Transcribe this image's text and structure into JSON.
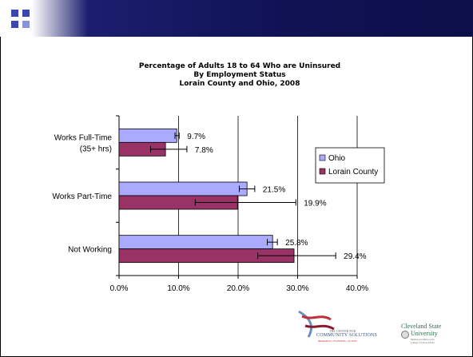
{
  "colors": {
    "ohio": "#aaaaff",
    "lorain": "#993366",
    "header_dark": "#101254",
    "accent_square": "#3b46b0"
  },
  "chart_data": {
    "type": "bar",
    "orientation": "horizontal",
    "title_lines": [
      "Percentage of Adults 18 to 64 Who are Uninsured",
      "By Employment Status",
      "Lorain County and Ohio, 2008"
    ],
    "categories": [
      "Works Full-Time\n(35+ hrs)",
      "Works Part-Time",
      "Not Working"
    ],
    "series": [
      {
        "name": "Ohio",
        "values": [
          9.7,
          21.5,
          25.8
        ],
        "labels": [
          "9.7%",
          "21.5%",
          "25.8%"
        ],
        "error_low": [
          9.4,
          20.2,
          24.9
        ],
        "error_high": [
          10.1,
          22.8,
          26.6
        ]
      },
      {
        "name": "Lorain County",
        "values": [
          7.8,
          19.9,
          29.4
        ],
        "labels": [
          "7.8%",
          "19.9%",
          "29.4%"
        ],
        "error_low": [
          5.3,
          12.8,
          23.3
        ],
        "error_high": [
          11.4,
          29.7,
          36.4
        ]
      }
    ],
    "xlim": [
      0,
      40
    ],
    "xticks": [
      0,
      10,
      20,
      30,
      40
    ],
    "xtick_labels": [
      "0.0%",
      "10.0%",
      "20.0%",
      "30.0%",
      "40.0%"
    ],
    "grid": "vertical",
    "legend": "right"
  },
  "logos": {
    "ccs": {
      "line1": "THE CENTER FOR",
      "line2": "COMMUNITY SOLUTIONS",
      "line3": "RESEARCH • PLANNING • ACTION"
    },
    "csu": {
      "line1": "Cleveland State",
      "line2": "University",
      "line3": "Maxine Goodman Levin",
      "line4": "College of Urban Affairs"
    }
  }
}
